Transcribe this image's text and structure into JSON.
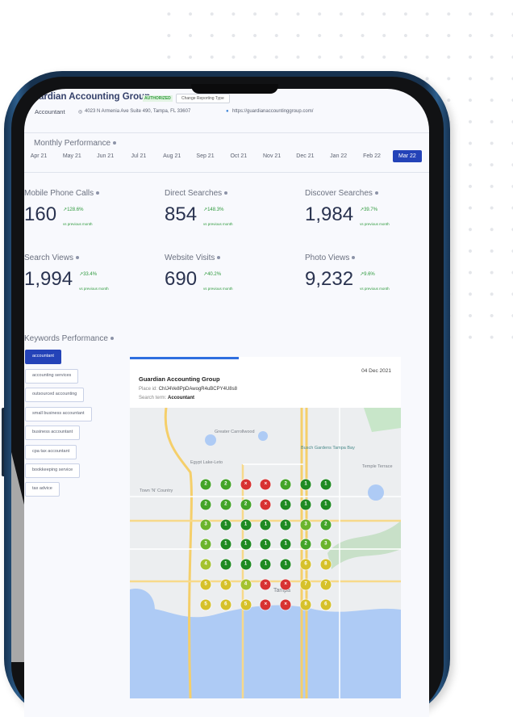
{
  "header": {
    "business_name": "Guardian Accounting Group",
    "status_badge": "AUTHORIZED",
    "change_button": "Change Reporting Type",
    "category": "Accountant",
    "address": "4023 N Armenia Ave Suite 490, Tampa, FL 33607",
    "website": "https://guardianaccountinggroup.com/"
  },
  "monthly": {
    "title": "Monthly Performance",
    "months": [
      "Apr 21",
      "May 21",
      "Jun 21",
      "Jul 21",
      "Aug 21",
      "Sep 21",
      "Oct 21",
      "Nov 21",
      "Dec 21",
      "Jan 22",
      "Feb 22",
      "Mar 22"
    ],
    "active": "Mar 22"
  },
  "metrics": [
    {
      "label": "Mobile Phone Calls",
      "value": "160",
      "change": "128.6%",
      "note": "vs previous month"
    },
    {
      "label": "Direct Searches",
      "value": "854",
      "change": "148.3%",
      "note": "vs previous month"
    },
    {
      "label": "Discover Searches",
      "value": "1,984",
      "change": "39.7%",
      "note": "vs previous month"
    },
    {
      "label": "Search Views",
      "value": "1,994",
      "change": "33.4%",
      "note": "vs previous month"
    },
    {
      "label": "Website Visits",
      "value": "690",
      "change": "40.2%",
      "note": "vs previous month"
    },
    {
      "label": "Photo Views",
      "value": "9,232",
      "change": "9.6%",
      "note": "vs previous month"
    }
  ],
  "keywords": {
    "title": "Keywords Performance",
    "items": [
      "accountant",
      "accounting services",
      "outsourced accounting",
      "small business accountant",
      "business accountant",
      "cpa tax accountant",
      "bookkeeping service",
      "tax advice"
    ],
    "active": "accountant"
  },
  "card": {
    "date": "04 Dec 2021",
    "name": "Guardian Accounting Group",
    "place_id_label": "Place id:",
    "place_id": "ChIJ4Ve8PpDAwogR4uBCPY4U8s8",
    "search_term_label": "Search term:",
    "search_term": "Accountant"
  },
  "map": {
    "labels": [
      "Greater Carrollwood",
      "Busch Gardens Tampa Bay",
      "Town 'N' Country",
      "Tampa",
      "Temple Terrace",
      "Egypt Lake-Leto"
    ],
    "grid": [
      [
        "2",
        "2",
        "x",
        "x",
        "2",
        "1",
        "1"
      ],
      [
        "2",
        "2",
        "2",
        "x",
        "1",
        "1",
        "1"
      ],
      [
        "3",
        "1",
        "1",
        "1",
        "1",
        "3",
        "2"
      ],
      [
        "3",
        "1",
        "1",
        "1",
        "1",
        "2",
        "3"
      ],
      [
        "4",
        "1",
        "1",
        "1",
        "1",
        "6",
        "8"
      ],
      [
        "5",
        "5",
        "4",
        "x",
        "x",
        "7",
        "7"
      ],
      [
        "5",
        "6",
        "5",
        "x",
        "x",
        "8",
        "6"
      ]
    ],
    "colors": {
      "1": "#1f8a22",
      "2": "#43a428",
      "3": "#6bb42c",
      "4": "#a4c22e",
      "5": "#d6c12a",
      "6": "#d6c12a",
      "7": "#d6c12a",
      "8": "#d6c12a",
      "x": "#d83232"
    }
  },
  "colors": {
    "accent": "#2443b8",
    "positive": "#2e9a3d"
  }
}
